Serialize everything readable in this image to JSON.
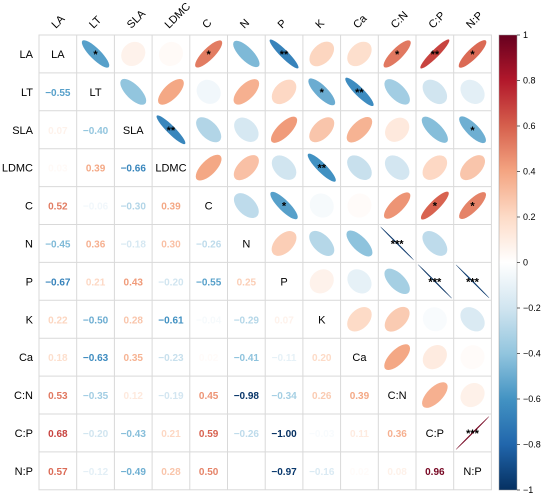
{
  "chart_data": {
    "type": "heatmap",
    "variables": [
      "LA",
      "LT",
      "SLA",
      "LDMC",
      "C",
      "N",
      "P",
      "K",
      "Ca",
      "C:N",
      "C:P",
      "N:P"
    ],
    "matrix": [
      [
        1,
        -0.55,
        0.07,
        0.03,
        0.52,
        -0.45,
        -0.67,
        0.22,
        0.18,
        0.53,
        0.68,
        0.57
      ],
      [
        -0.55,
        1,
        -0.4,
        0.39,
        -0.06,
        0.36,
        0.21,
        -0.5,
        -0.63,
        -0.35,
        -0.2,
        -0.12
      ],
      [
        0.07,
        -0.4,
        1,
        -0.66,
        -0.3,
        -0.18,
        0.43,
        0.28,
        0.35,
        0.12,
        -0.43,
        -0.49
      ],
      [
        0.03,
        0.39,
        -0.66,
        1,
        0.39,
        0.3,
        -0.2,
        -0.61,
        -0.23,
        -0.19,
        0.21,
        0.28
      ],
      [
        0.52,
        -0.06,
        -0.3,
        0.39,
        1,
        -0.26,
        -0.55,
        -0.04,
        0.02,
        0.45,
        0.59,
        0.5
      ],
      [
        -0.45,
        0.36,
        -0.18,
        0.3,
        -0.26,
        1,
        0.25,
        -0.29,
        -0.41,
        -0.98,
        -0.26,
        0.0
      ],
      [
        -0.67,
        0.21,
        0.43,
        -0.2,
        -0.55,
        0.25,
        1,
        0.07,
        -0.11,
        -0.34,
        -1.0,
        -0.97
      ],
      [
        0.22,
        -0.5,
        0.28,
        -0.61,
        -0.04,
        -0.29,
        0.07,
        1,
        0.2,
        0.26,
        -0.03,
        -0.16
      ],
      [
        0.18,
        -0.63,
        0.35,
        -0.23,
        0.02,
        -0.41,
        -0.11,
        0.2,
        1,
        0.39,
        0.11,
        0.02
      ],
      [
        0.53,
        -0.35,
        0.12,
        -0.19,
        0.45,
        -0.98,
        -0.34,
        0.26,
        0.39,
        1,
        0.36,
        0.08
      ],
      [
        0.68,
        -0.2,
        -0.43,
        0.21,
        0.59,
        -0.26,
        -1.0,
        -0.03,
        0.11,
        0.36,
        1,
        0.96
      ],
      [
        0.57,
        -0.12,
        -0.49,
        0.28,
        0.5,
        0.0,
        -0.97,
        -0.16,
        0.02,
        0.08,
        0.96,
        1
      ]
    ],
    "upper_stars": [
      {
        "row": 0,
        "col": 1,
        "stars": "*"
      },
      {
        "row": 0,
        "col": 4,
        "stars": "*"
      },
      {
        "row": 0,
        "col": 6,
        "stars": "**"
      },
      {
        "row": 0,
        "col": 9,
        "stars": "*"
      },
      {
        "row": 0,
        "col": 10,
        "stars": "**"
      },
      {
        "row": 0,
        "col": 11,
        "stars": "*"
      },
      {
        "row": 1,
        "col": 7,
        "stars": "*"
      },
      {
        "row": 1,
        "col": 8,
        "stars": "**"
      },
      {
        "row": 2,
        "col": 3,
        "stars": "**"
      },
      {
        "row": 2,
        "col": 11,
        "stars": "*"
      },
      {
        "row": 3,
        "col": 7,
        "stars": "**"
      },
      {
        "row": 4,
        "col": 6,
        "stars": "*"
      },
      {
        "row": 4,
        "col": 10,
        "stars": "*"
      },
      {
        "row": 4,
        "col": 11,
        "stars": "*"
      },
      {
        "row": 5,
        "col": 9,
        "stars": "***"
      },
      {
        "row": 6,
        "col": 10,
        "stars": "***"
      },
      {
        "row": 6,
        "col": 11,
        "stars": "***"
      },
      {
        "row": 10,
        "col": 11,
        "stars": "***"
      }
    ],
    "lower": "number",
    "upper": "ellipse",
    "colorbar": {
      "range": [
        -1,
        1
      ],
      "ticks": [
        "1",
        "0.8",
        "0.6",
        "0.4",
        "0.2",
        "0",
        "−0.2",
        "−0.4",
        "−0.6",
        "−0.8",
        "−1"
      ],
      "colors": [
        "#67001F",
        "#B2182B",
        "#D6604D",
        "#F4A582",
        "#FDDBC7",
        "#FFFFFF",
        "#D1E5F0",
        "#92C5DE",
        "#4393C3",
        "#2166AC",
        "#053061"
      ]
    }
  }
}
